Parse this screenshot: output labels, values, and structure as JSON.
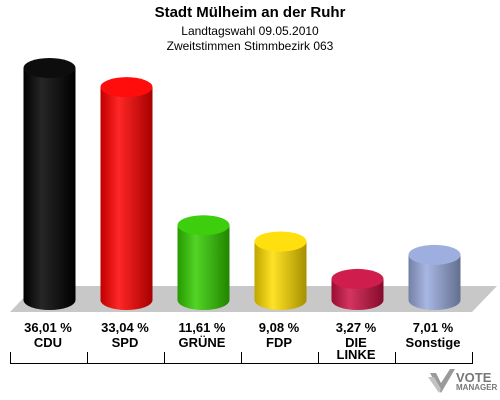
{
  "header": {
    "title": "Stadt Mülheim an der Ruhr",
    "subtitle1": "Landtagswahl 09.05.2010",
    "subtitle2": "Zweitstimmen Stimmbezirk 063"
  },
  "chart_data": {
    "type": "bar",
    "title": "Stadt Mülheim an der Ruhr",
    "subtitle": [
      "Landtagswahl 09.05.2010",
      "Zweitstimmen Stimmbezirk 063"
    ],
    "categories": [
      "CDU",
      "SPD",
      "GRÜNE",
      "FDP",
      "DIE LINKE",
      "Sonstige"
    ],
    "values": [
      36.01,
      33.04,
      11.61,
      9.08,
      3.27,
      7.01
    ],
    "value_labels": [
      "36,01 %",
      "33,04 %",
      "11,61 %",
      "9,08 %",
      "3,27 %",
      "7,01 %"
    ],
    "colors": [
      "#000000",
      "#ff0000",
      "#33cc00",
      "#ffdd00",
      "#cc1144",
      "#99aadd"
    ],
    "ylim": [
      0,
      36.01
    ],
    "grid": false,
    "legend": "none"
  },
  "logo": {
    "line1": "VOTE",
    "line2": "MANAGER"
  }
}
